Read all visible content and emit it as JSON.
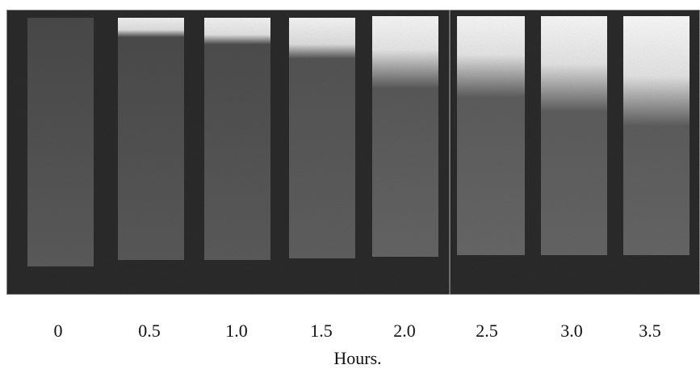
{
  "figure": {
    "labels": [
      "0",
      "0.5",
      "1.0",
      "1.5",
      "2.0",
      "2.5",
      "3.0",
      "3.5"
    ],
    "axis_label": "Hours."
  }
}
